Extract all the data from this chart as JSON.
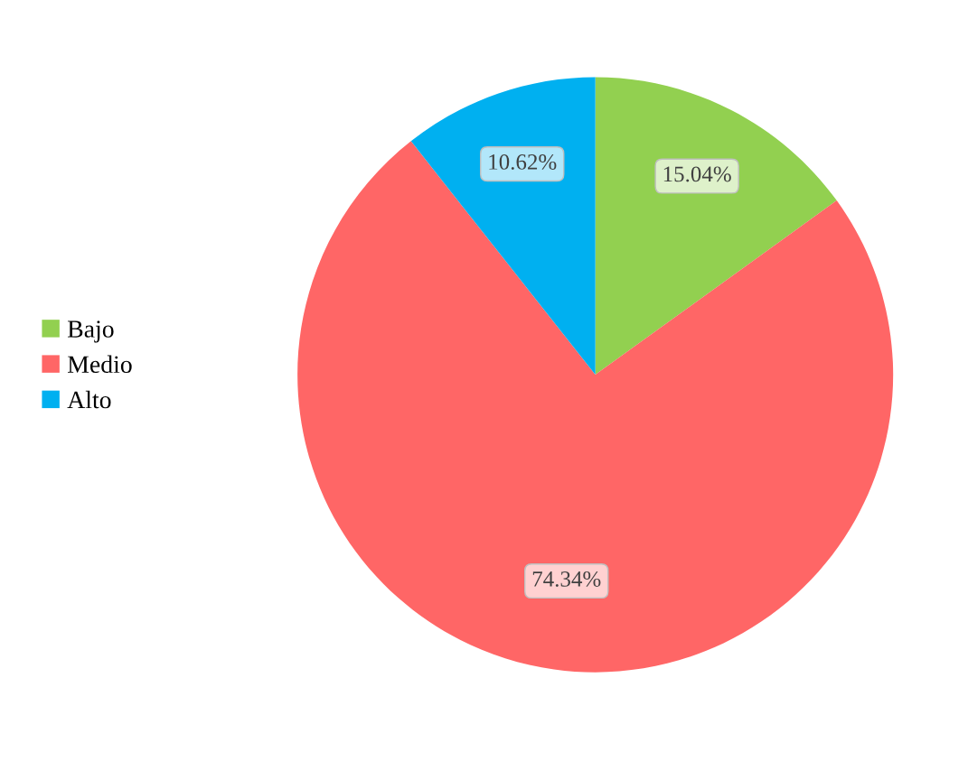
{
  "chart_data": {
    "type": "pie",
    "categories": [
      "Bajo",
      "Medio",
      "Alto"
    ],
    "values": [
      15.04,
      74.34,
      10.62
    ],
    "colors": [
      "#92d050",
      "#ff6666",
      "#00b0f0"
    ],
    "value_labels": [
      "15.04%",
      "74.34%",
      "10.62%"
    ],
    "legend": "left"
  }
}
